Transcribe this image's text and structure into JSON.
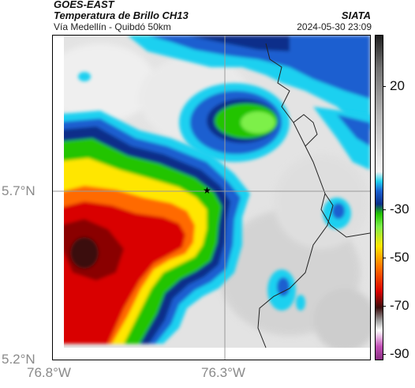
{
  "header": {
    "title": "GOES-EAST",
    "subtitle": "Temperatura de Brillo CH13",
    "location": "Vía Medellín - Quibdó 50km",
    "organization": "SIATA",
    "datetime": "2024-05-30 23:09"
  },
  "axes": {
    "lat_labels": [
      "5.7°N",
      "5.2°N"
    ],
    "lon_labels": [
      "76.8°W",
      "76.3°W"
    ]
  },
  "colorbar": {
    "tick_labels": [
      "20",
      "-30",
      "-50",
      "-70",
      "-90"
    ],
    "units_hint": "Brightness temperature (°C)",
    "colors": {
      "magenta": "#c24fb6",
      "dark_red": "#3a0d0d",
      "red": "#d90000",
      "orange": "#ff6a00",
      "yellow": "#ffe600",
      "green": "#22c400",
      "dark_blue": "#0a2f8a",
      "blue": "#1a5fd0",
      "cyan": "#1fd0f0",
      "gray_light": "#e8e8e8",
      "gray_dark": "#202020"
    }
  },
  "map": {
    "marker_icon": "star-marker-icon"
  }
}
